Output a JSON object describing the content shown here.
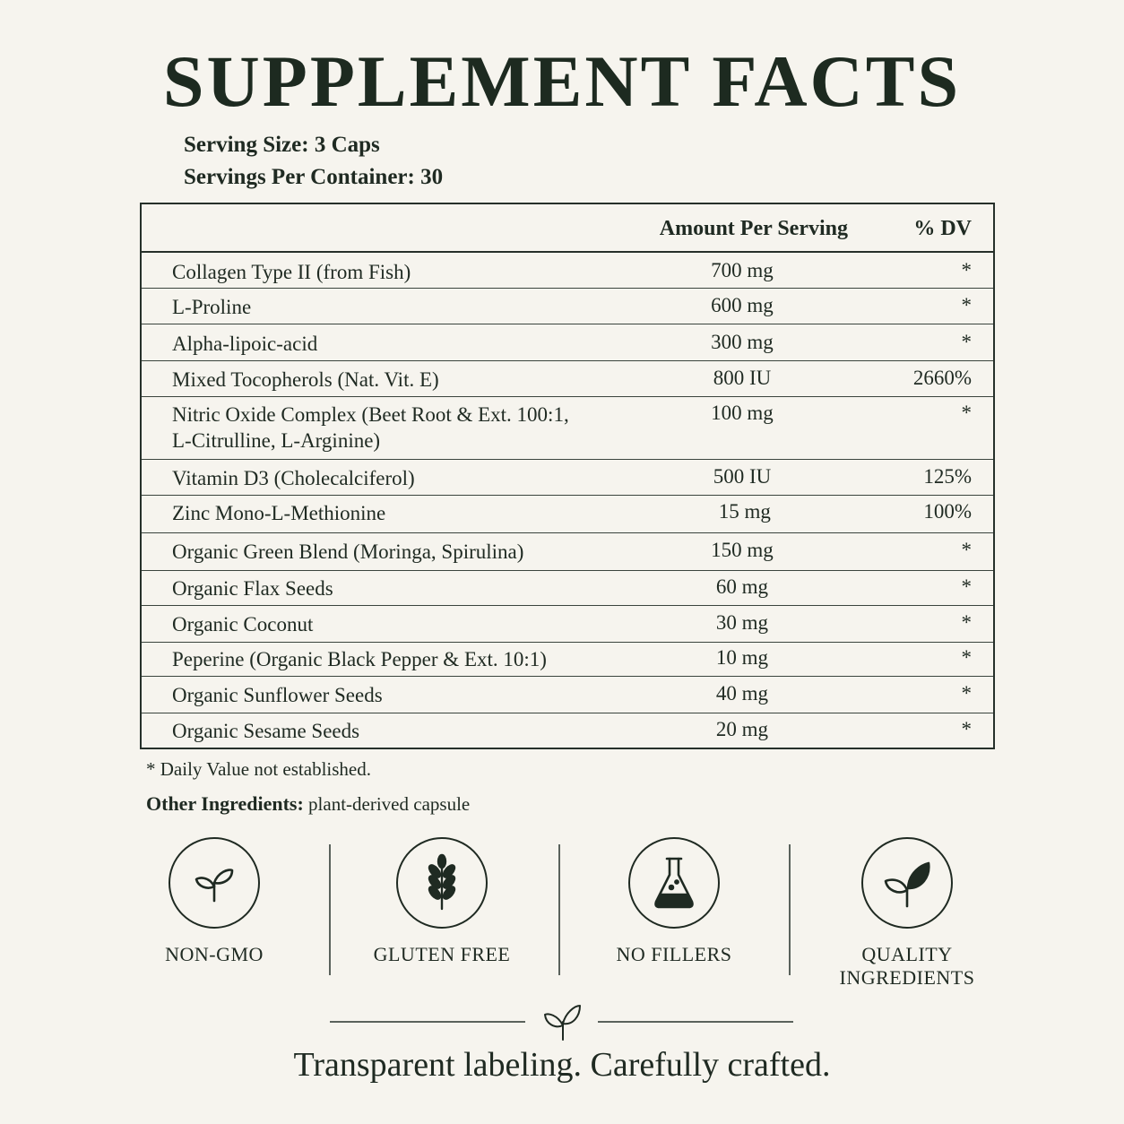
{
  "title": "SUPPLEMENT FACTS",
  "serving_size": "Serving Size: 3 Caps",
  "servings_per_container": "Servings Per Container: 30",
  "table": {
    "header_amount": "Amount Per Serving",
    "header_dv": "% DV",
    "rows": [
      {
        "name": "Collagen Type II (from Fish)",
        "amount": "700 mg",
        "dv": "*"
      },
      {
        "name": "L-Proline",
        "amount": "600 mg",
        "dv": "*"
      },
      {
        "name": "Alpha-lipoic-acid",
        "amount": "300 mg",
        "dv": "*"
      },
      {
        "name": "Mixed Tocopherols (Nat. Vit. E)",
        "amount": "800 IU",
        "dv": "2660%"
      },
      {
        "name": "Nitric Oxide Complex (Beet Root & Ext. 100:1,",
        "name2": "L-Citrulline, L-Arginine)",
        "amount": "100 mg",
        "dv": "*"
      },
      {
        "name": "Vitamin D3 (Cholecalciferol)",
        "amount": "500 IU",
        "dv": "125%"
      },
      {
        "name": "Zinc Mono-L-Methionine",
        "amount": " 15 mg",
        "dv": "100%"
      },
      {
        "name": "Organic Green Blend (Moringa, Spirulina)",
        "amount": "150 mg",
        "dv": "*"
      },
      {
        "name": "Organic Flax Seeds",
        "amount": "60 mg",
        "dv": "*"
      },
      {
        "name": "Organic Coconut",
        "amount": "30 mg",
        "dv": "*"
      },
      {
        "name": "Peperine (Organic Black Pepper & Ext. 10:1)",
        "amount": "10 mg",
        "dv": "*"
      },
      {
        "name": "Organic Sunflower Seeds",
        "amount": "40 mg",
        "dv": "*"
      },
      {
        "name": "Organic Sesame Seeds",
        "amount": "20 mg",
        "dv": "*"
      }
    ]
  },
  "footnote": "* Daily Value not established.",
  "other_ingredients_label": "Other Ingredients:",
  "other_ingredients_value": "plant-derived capsule",
  "badges": [
    {
      "icon": "sprout-icon",
      "label": "NON-GMO"
    },
    {
      "icon": "wheat-icon",
      "label": "GLUTEN FREE"
    },
    {
      "icon": "flask-icon",
      "label": "NO FILLERS"
    },
    {
      "icon": "leaf-icon",
      "label": "QUALITY",
      "label2": "INGREDIENTS"
    }
  ],
  "tagline": "Transparent labeling. Carefully crafted.",
  "colors": {
    "background": "#f6f4ee",
    "ink": "#1f2a22"
  }
}
